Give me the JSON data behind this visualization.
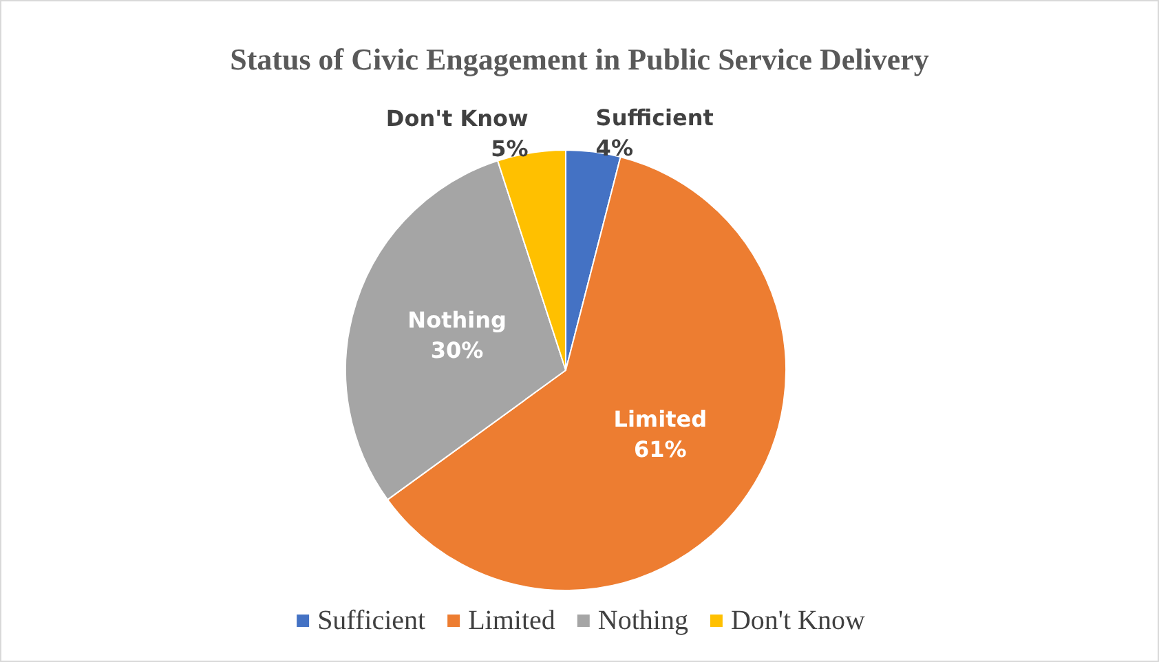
{
  "chart_data": {
    "type": "pie",
    "title": "Status of Civic Engagement in Public Service Delivery",
    "categories": [
      "Sufficient",
      "Limited",
      "Nothing",
      "Don't Know"
    ],
    "values": [
      4,
      61,
      30,
      5
    ],
    "value_labels": [
      "4%",
      "61%",
      "30%",
      "5%"
    ],
    "colors": [
      "#4472c4",
      "#ed7d31",
      "#a5a5a5",
      "#ffc000"
    ],
    "legend": "bottom"
  }
}
